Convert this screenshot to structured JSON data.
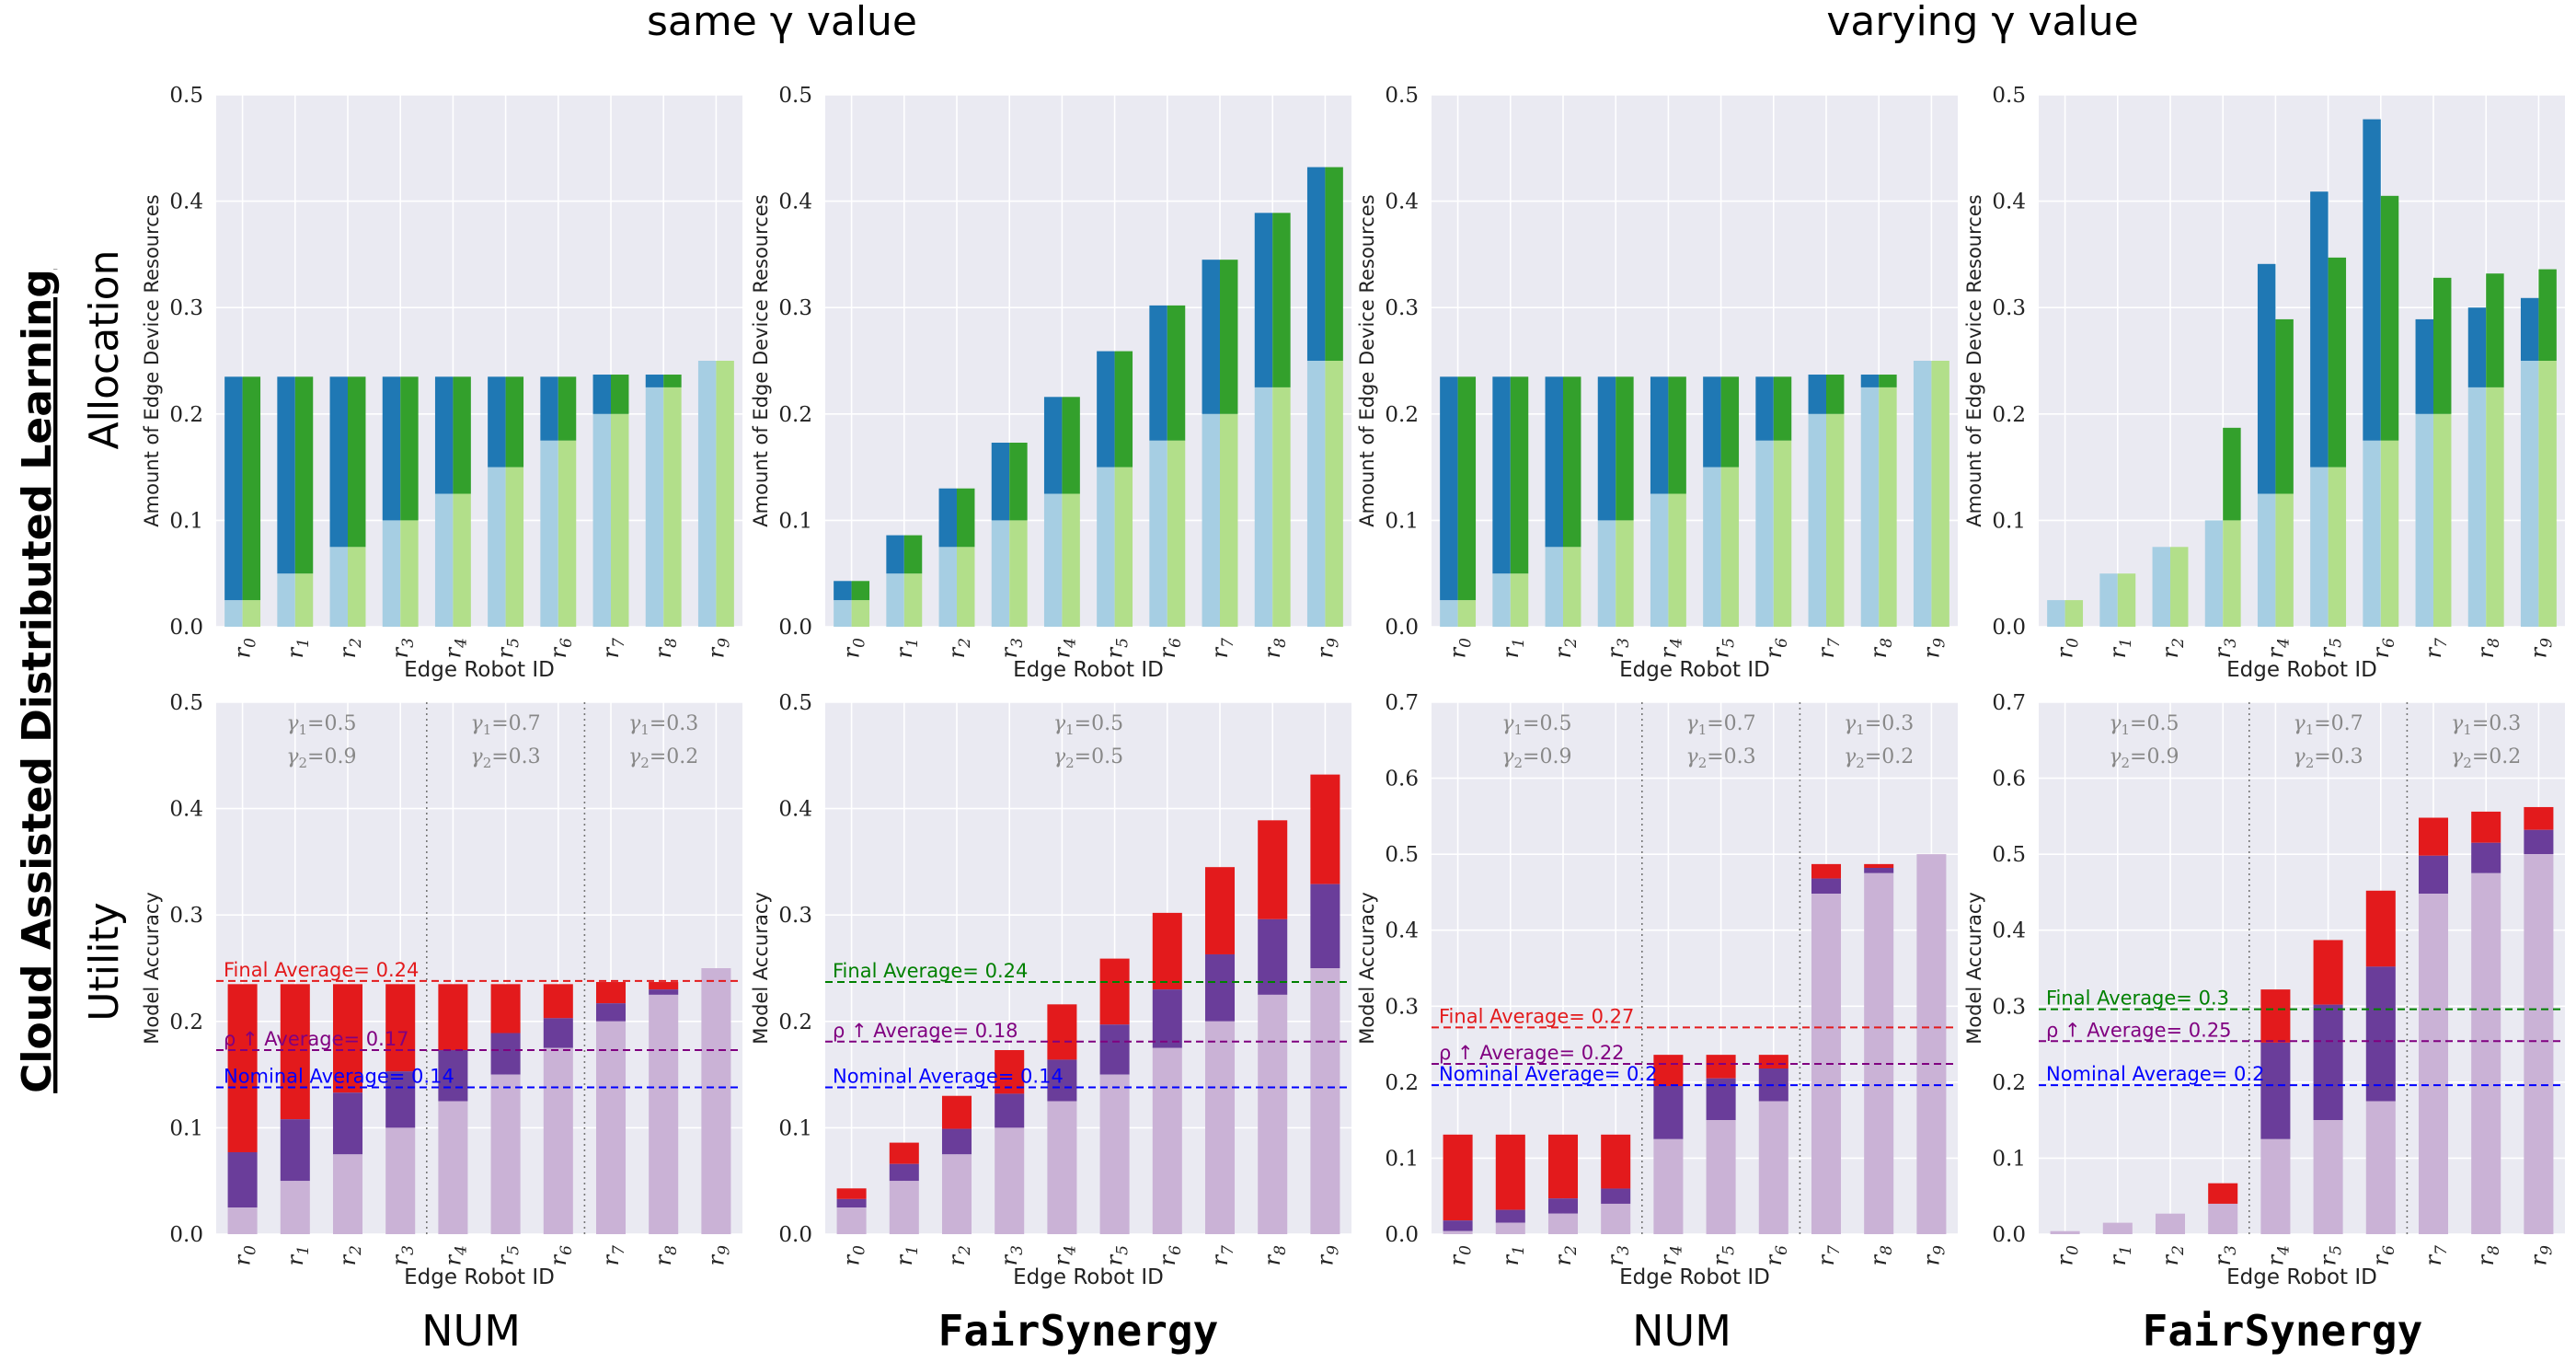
{
  "figure": {
    "section_titles": [
      "same γ value",
      "varying γ value"
    ],
    "row_labels": [
      "Allocation",
      "Utility"
    ],
    "side_title": "Cloud Assisted Distributed Learning",
    "method_labels": [
      "NUM",
      "FairSynergy",
      "NUM",
      "FairSynergy"
    ]
  },
  "colors": {
    "allocA_base": "#a6cee3",
    "allocA_top": "#1f78b4",
    "allocB_base": "#b2df8a",
    "allocB_top": "#33a02c",
    "util_base": "#cab2d6",
    "util_mid": "#6a3d9a",
    "util_top": "#e31a1c",
    "final": "#e31a1c",
    "rho": "#800080",
    "nominal": "#0000ff",
    "final_green": "#008000",
    "grid_bg": "#eaeaf2"
  },
  "chart_data": [
    {
      "id": "alloc-same-num",
      "type": "bar",
      "xlabel": "Edge Robot ID",
      "ylabel": "Amount of Edge Device Resources",
      "ylim": [
        0,
        0.5
      ],
      "yticks": [
        "0.0",
        "0.1",
        "0.2",
        "0.3",
        "0.4",
        "0.5"
      ],
      "categories": [
        "r0",
        "r1",
        "r2",
        "r3",
        "r4",
        "r5",
        "r6",
        "r7",
        "r8",
        "r9"
      ],
      "series": [
        {
          "base": [
            0.025,
            0.05,
            0.075,
            0.1,
            0.125,
            0.15,
            0.175,
            0.2,
            0.225,
            0.25
          ],
          "total": [
            0.235,
            0.235,
            0.235,
            0.235,
            0.235,
            0.235,
            0.235,
            0.237,
            0.237,
            0.25
          ]
        },
        {
          "base": [
            0.025,
            0.05,
            0.075,
            0.1,
            0.125,
            0.15,
            0.175,
            0.2,
            0.225,
            0.25
          ],
          "total": [
            0.235,
            0.235,
            0.235,
            0.235,
            0.235,
            0.235,
            0.235,
            0.237,
            0.237,
            0.25
          ]
        }
      ]
    },
    {
      "id": "alloc-same-fair",
      "type": "bar",
      "xlabel": "Edge Robot ID",
      "ylabel": "Amount of Edge Device Resources",
      "ylim": [
        0,
        0.5
      ],
      "yticks": [
        "0.0",
        "0.1",
        "0.2",
        "0.3",
        "0.4",
        "0.5"
      ],
      "categories": [
        "r0",
        "r1",
        "r2",
        "r3",
        "r4",
        "r5",
        "r6",
        "r7",
        "r8",
        "r9"
      ],
      "series": [
        {
          "base": [
            0.025,
            0.05,
            0.075,
            0.1,
            0.125,
            0.15,
            0.175,
            0.2,
            0.225,
            0.25
          ],
          "total": [
            0.043,
            0.086,
            0.13,
            0.173,
            0.216,
            0.259,
            0.302,
            0.345,
            0.389,
            0.432
          ]
        },
        {
          "base": [
            0.025,
            0.05,
            0.075,
            0.1,
            0.125,
            0.15,
            0.175,
            0.2,
            0.225,
            0.25
          ],
          "total": [
            0.043,
            0.086,
            0.13,
            0.173,
            0.216,
            0.259,
            0.302,
            0.345,
            0.389,
            0.432
          ]
        }
      ]
    },
    {
      "id": "alloc-vary-num",
      "type": "bar",
      "xlabel": "Edge Robot ID",
      "ylabel": "Amount of Edge Device Resources",
      "ylim": [
        0,
        0.5
      ],
      "yticks": [
        "0.0",
        "0.1",
        "0.2",
        "0.3",
        "0.4",
        "0.5"
      ],
      "categories": [
        "r0",
        "r1",
        "r2",
        "r3",
        "r4",
        "r5",
        "r6",
        "r7",
        "r8",
        "r9"
      ],
      "series": [
        {
          "base": [
            0.025,
            0.05,
            0.075,
            0.1,
            0.125,
            0.15,
            0.175,
            0.2,
            0.225,
            0.25
          ],
          "total": [
            0.235,
            0.235,
            0.235,
            0.235,
            0.235,
            0.235,
            0.235,
            0.237,
            0.237,
            0.25
          ]
        },
        {
          "base": [
            0.025,
            0.05,
            0.075,
            0.1,
            0.125,
            0.15,
            0.175,
            0.2,
            0.225,
            0.25
          ],
          "total": [
            0.235,
            0.235,
            0.235,
            0.235,
            0.235,
            0.235,
            0.235,
            0.237,
            0.237,
            0.25
          ]
        }
      ]
    },
    {
      "id": "alloc-vary-fair",
      "type": "bar",
      "xlabel": "Edge Robot ID",
      "ylabel": "Amount of Edge Device Resources",
      "ylim": [
        0,
        0.5
      ],
      "yticks": [
        "0.0",
        "0.1",
        "0.2",
        "0.3",
        "0.4",
        "0.5"
      ],
      "categories": [
        "r0",
        "r1",
        "r2",
        "r3",
        "r4",
        "r5",
        "r6",
        "r7",
        "r8",
        "r9"
      ],
      "series": [
        {
          "base": [
            0.025,
            0.05,
            0.075,
            0.1,
            0.125,
            0.15,
            0.175,
            0.2,
            0.225,
            0.25
          ],
          "total": [
            0.025,
            0.05,
            0.075,
            0.1,
            0.341,
            0.409,
            0.477,
            0.289,
            0.3,
            0.309
          ]
        },
        {
          "base": [
            0.025,
            0.05,
            0.075,
            0.1,
            0.125,
            0.15,
            0.175,
            0.2,
            0.225,
            0.25
          ],
          "total": [
            0.025,
            0.05,
            0.075,
            0.187,
            0.289,
            0.347,
            0.405,
            0.328,
            0.332,
            0.336
          ]
        }
      ]
    },
    {
      "id": "util-same-num",
      "type": "bar",
      "xlabel": "Edge Robot ID",
      "ylabel": "Model Accuracy",
      "ylim": [
        0,
        0.5
      ],
      "yticks": [
        "0.0",
        "0.1",
        "0.2",
        "0.3",
        "0.4",
        "0.5"
      ],
      "categories": [
        "r0",
        "r1",
        "r2",
        "r3",
        "r4",
        "r5",
        "r6",
        "r7",
        "r8",
        "r9"
      ],
      "nominal": [
        0.025,
        0.05,
        0.075,
        0.1,
        0.125,
        0.15,
        0.175,
        0.2,
        0.225,
        0.25
      ],
      "rho": [
        0.077,
        0.108,
        0.133,
        0.153,
        0.173,
        0.189,
        0.203,
        0.217,
        0.23,
        0.25
      ],
      "final": [
        0.235,
        0.235,
        0.235,
        0.235,
        0.235,
        0.235,
        0.235,
        0.237,
        0.237,
        0.25
      ],
      "groups": [
        {
          "start": 0,
          "end": 3,
          "gamma1": "γ1=0.5",
          "gamma2": "γ2=0.9"
        },
        {
          "start": 4,
          "end": 6,
          "gamma1": "γ1=0.7",
          "gamma2": "γ2=0.3"
        },
        {
          "start": 7,
          "end": 9,
          "gamma1": "γ1=0.3",
          "gamma2": "γ2=0.2"
        }
      ],
      "averages": [
        {
          "label": "Final Average= 0.24",
          "value": 0.238,
          "color": "#e31a1c"
        },
        {
          "label": "ρ ↑ Average= 0.17",
          "value": 0.173,
          "color": "#800080"
        },
        {
          "label": "Nominal Average= 0.14",
          "value": 0.138,
          "color": "#0000ff"
        }
      ]
    },
    {
      "id": "util-same-fair",
      "type": "bar",
      "xlabel": "Edge Robot ID",
      "ylabel": "Model Accuracy",
      "ylim": [
        0,
        0.5
      ],
      "yticks": [
        "0.0",
        "0.1",
        "0.2",
        "0.3",
        "0.4",
        "0.5"
      ],
      "categories": [
        "r0",
        "r1",
        "r2",
        "r3",
        "r4",
        "r5",
        "r6",
        "r7",
        "r8",
        "r9"
      ],
      "nominal": [
        0.025,
        0.05,
        0.075,
        0.1,
        0.125,
        0.15,
        0.175,
        0.2,
        0.225,
        0.25
      ],
      "rho": [
        0.033,
        0.066,
        0.099,
        0.132,
        0.164,
        0.197,
        0.23,
        0.263,
        0.296,
        0.329
      ],
      "final": [
        0.043,
        0.086,
        0.13,
        0.173,
        0.216,
        0.259,
        0.302,
        0.345,
        0.389,
        0.432
      ],
      "groups": [
        {
          "start": 0,
          "end": 9,
          "gamma1": "γ1=0.5",
          "gamma2": "γ2=0.5"
        }
      ],
      "averages": [
        {
          "label": "Final Average= 0.24",
          "value": 0.237,
          "color": "#008000"
        },
        {
          "label": "ρ ↑ Average= 0.18",
          "value": 0.181,
          "color": "#800080"
        },
        {
          "label": "Nominal Average= 0.14",
          "value": 0.138,
          "color": "#0000ff"
        }
      ]
    },
    {
      "id": "util-vary-num",
      "type": "bar",
      "xlabel": "Edge Robot ID",
      "ylabel": "Model Accuracy",
      "ylim": [
        0,
        0.7
      ],
      "yticks": [
        "0.0",
        "0.1",
        "0.2",
        "0.3",
        "0.4",
        "0.5",
        "0.6",
        "0.7"
      ],
      "categories": [
        "r0",
        "r1",
        "r2",
        "r3",
        "r4",
        "r5",
        "r6",
        "r7",
        "r8",
        "r9"
      ],
      "nominal": [
        0.004,
        0.015,
        0.027,
        0.04,
        0.125,
        0.15,
        0.175,
        0.448,
        0.475,
        0.5
      ],
      "rho": [
        0.018,
        0.032,
        0.047,
        0.06,
        0.195,
        0.205,
        0.218,
        0.468,
        0.482,
        0.5
      ],
      "final": [
        0.131,
        0.131,
        0.131,
        0.131,
        0.236,
        0.236,
        0.236,
        0.487,
        0.487,
        0.5
      ],
      "groups": [
        {
          "start": 0,
          "end": 3,
          "gamma1": "γ1=0.5",
          "gamma2": "γ2=0.9"
        },
        {
          "start": 4,
          "end": 6,
          "gamma1": "γ1=0.7",
          "gamma2": "γ2=0.3"
        },
        {
          "start": 7,
          "end": 9,
          "gamma1": "γ1=0.3",
          "gamma2": "γ2=0.2"
        }
      ],
      "averages": [
        {
          "label": "Final Average= 0.27",
          "value": 0.272,
          "color": "#e31a1c"
        },
        {
          "label": "ρ ↑ Average= 0.22",
          "value": 0.224,
          "color": "#800080"
        },
        {
          "label": "Nominal Average= 0.2",
          "value": 0.196,
          "color": "#0000ff"
        }
      ]
    },
    {
      "id": "util-vary-fair",
      "type": "bar",
      "xlabel": "Edge Robot ID",
      "ylabel": "Model Accuracy",
      "ylim": [
        0,
        0.7
      ],
      "yticks": [
        "0.0",
        "0.1",
        "0.2",
        "0.3",
        "0.4",
        "0.5",
        "0.6",
        "0.7"
      ],
      "categories": [
        "r0",
        "r1",
        "r2",
        "r3",
        "r4",
        "r5",
        "r6",
        "r7",
        "r8",
        "r9"
      ],
      "nominal": [
        0.004,
        0.015,
        0.027,
        0.04,
        0.125,
        0.15,
        0.175,
        0.448,
        0.475,
        0.5
      ],
      "rho": [
        0.004,
        0.015,
        0.027,
        0.04,
        0.252,
        0.302,
        0.352,
        0.498,
        0.515,
        0.532
      ],
      "final": [
        0.004,
        0.015,
        0.027,
        0.067,
        0.322,
        0.387,
        0.452,
        0.548,
        0.556,
        0.562
      ],
      "groups": [
        {
          "start": 0,
          "end": 3,
          "gamma1": "γ1=0.5",
          "gamma2": "γ2=0.9"
        },
        {
          "start": 4,
          "end": 6,
          "gamma1": "γ1=0.7",
          "gamma2": "γ2=0.3"
        },
        {
          "start": 7,
          "end": 9,
          "gamma1": "γ1=0.3",
          "gamma2": "γ2=0.2"
        }
      ],
      "averages": [
        {
          "label": "Final Average= 0.3",
          "value": 0.296,
          "color": "#008000"
        },
        {
          "label": "ρ ↑ Average= 0.25",
          "value": 0.254,
          "color": "#800080"
        },
        {
          "label": "Nominal Average= 0.2",
          "value": 0.196,
          "color": "#0000ff"
        }
      ]
    }
  ]
}
